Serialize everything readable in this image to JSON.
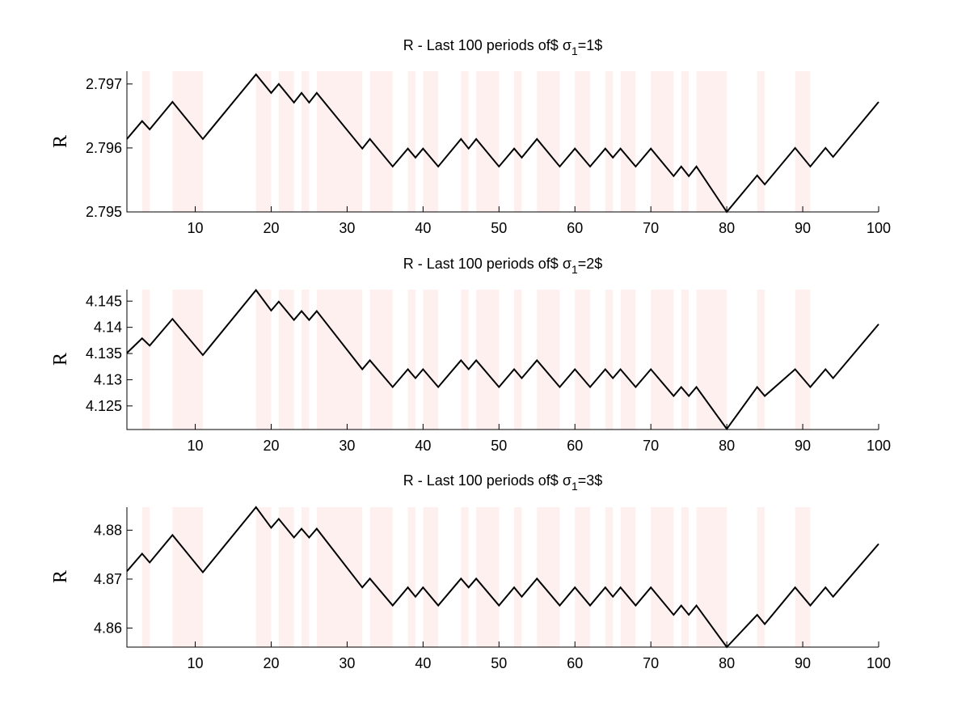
{
  "chart_data": [
    {
      "type": "line",
      "title": "R - Last 100 periods of$ σ1=1$",
      "title_main": "R - Last 100 periods of$ σ",
      "title_sub": "1",
      "title_end": "=1$",
      "ylabel": "R",
      "xlim": [
        1,
        100
      ],
      "ylim": [
        2.795,
        2.7972
      ],
      "xticks": [
        10,
        20,
        30,
        40,
        50,
        60,
        70,
        80,
        90,
        100
      ],
      "yticks": [
        2.795,
        2.796,
        2.797
      ],
      "ytick_labels": [
        "2.795",
        "2.796",
        "2.797"
      ],
      "shaded_intervals": [
        [
          3,
          4
        ],
        [
          7,
          11
        ],
        [
          18,
          20
        ],
        [
          21,
          23
        ],
        [
          24,
          25
        ],
        [
          26,
          32
        ],
        [
          33,
          36
        ],
        [
          38,
          39
        ],
        [
          40,
          42
        ],
        [
          45,
          46
        ],
        [
          47,
          50
        ],
        [
          52,
          53
        ],
        [
          55,
          58
        ],
        [
          60,
          62
        ],
        [
          64,
          65
        ],
        [
          66,
          68
        ],
        [
          70,
          73
        ],
        [
          74,
          75
        ],
        [
          76,
          80
        ],
        [
          84,
          85
        ],
        [
          89,
          91
        ]
      ],
      "series": [
        {
          "x": [
            1,
            3,
            4,
            7,
            11,
            18,
            20,
            21,
            23,
            24,
            25,
            26,
            32,
            33,
            36,
            38,
            39,
            40,
            42,
            45,
            46,
            47,
            50,
            52,
            53,
            55,
            58,
            60,
            62,
            64,
            65,
            66,
            68,
            70,
            73,
            74,
            75,
            76,
            80,
            84,
            85,
            89,
            91,
            93,
            94,
            100
          ],
          "values": [
            2.79614,
            2.79642,
            2.79629,
            2.79672,
            2.79614,
            2.79715,
            2.79686,
            2.797,
            2.79671,
            2.79686,
            2.79671,
            2.79686,
            2.79599,
            2.79614,
            2.79571,
            2.79599,
            2.79585,
            2.79599,
            2.79571,
            2.79614,
            2.79599,
            2.79614,
            2.79571,
            2.79599,
            2.79585,
            2.79614,
            2.79571,
            2.79599,
            2.79571,
            2.79599,
            2.79585,
            2.79599,
            2.79571,
            2.79599,
            2.79556,
            2.79571,
            2.79556,
            2.79571,
            2.795,
            2.79557,
            2.79543,
            2.796,
            2.79571,
            2.796,
            2.79586,
            2.79672
          ]
        }
      ]
    },
    {
      "type": "line",
      "title": "R - Last 100 periods of$ σ1=2$",
      "title_main": "R - Last 100 periods of$ σ",
      "title_sub": "1",
      "title_end": "=2$",
      "ylabel": "R",
      "xlim": [
        1,
        100
      ],
      "ylim": [
        4.1205,
        4.1472
      ],
      "xticks": [
        10,
        20,
        30,
        40,
        50,
        60,
        70,
        80,
        90,
        100
      ],
      "yticks": [
        4.125,
        4.13,
        4.135,
        4.14,
        4.145
      ],
      "ytick_labels": [
        "4.125",
        "4.13",
        "4.135",
        "4.14",
        "4.145"
      ],
      "shaded_intervals": [
        [
          3,
          4
        ],
        [
          7,
          11
        ],
        [
          18,
          20
        ],
        [
          21,
          23
        ],
        [
          24,
          25
        ],
        [
          26,
          32
        ],
        [
          33,
          36
        ],
        [
          38,
          39
        ],
        [
          40,
          42
        ],
        [
          45,
          46
        ],
        [
          47,
          50
        ],
        [
          52,
          53
        ],
        [
          55,
          58
        ],
        [
          60,
          62
        ],
        [
          64,
          65
        ],
        [
          66,
          68
        ],
        [
          70,
          73
        ],
        [
          74,
          75
        ],
        [
          76,
          80
        ],
        [
          84,
          85
        ],
        [
          89,
          91
        ]
      ],
      "series": [
        {
          "x": [
            1,
            3,
            4,
            7,
            11,
            18,
            20,
            21,
            23,
            24,
            25,
            26,
            32,
            33,
            36,
            38,
            39,
            40,
            42,
            45,
            46,
            47,
            50,
            52,
            53,
            55,
            58,
            60,
            62,
            64,
            65,
            66,
            68,
            70,
            73,
            74,
            75,
            76,
            80,
            84,
            85,
            89,
            91,
            93,
            94,
            100
          ],
          "values": [
            4.1351,
            4.1379,
            4.1365,
            4.1416,
            4.1347,
            4.1471,
            4.1432,
            4.1449,
            4.1414,
            4.1431,
            4.1414,
            4.1431,
            4.132,
            4.1337,
            4.1286,
            4.132,
            4.1303,
            4.132,
            4.1286,
            4.1337,
            4.132,
            4.1337,
            4.1286,
            4.132,
            4.1303,
            4.1337,
            4.1286,
            4.132,
            4.1286,
            4.132,
            4.1303,
            4.132,
            4.1286,
            4.132,
            4.1269,
            4.1286,
            4.1269,
            4.1286,
            4.1206,
            4.1286,
            4.1269,
            4.132,
            4.1286,
            4.132,
            4.1303,
            4.1406
          ]
        }
      ]
    },
    {
      "type": "line",
      "title": "R - Last 100 periods of$ σ1=3$",
      "title_main": "R - Last 100 periods of$ σ",
      "title_sub": "1",
      "title_end": "=3$",
      "ylabel": "R",
      "xlim": [
        1,
        100
      ],
      "ylim": [
        4.8561,
        4.8847
      ],
      "xticks": [
        10,
        20,
        30,
        40,
        50,
        60,
        70,
        80,
        90,
        100
      ],
      "yticks": [
        4.86,
        4.87,
        4.88
      ],
      "ytick_labels": [
        "4.86",
        "4.87",
        "4.88"
      ],
      "shaded_intervals": [
        [
          3,
          4
        ],
        [
          7,
          11
        ],
        [
          18,
          20
        ],
        [
          21,
          23
        ],
        [
          24,
          25
        ],
        [
          26,
          32
        ],
        [
          33,
          36
        ],
        [
          38,
          39
        ],
        [
          40,
          42
        ],
        [
          45,
          46
        ],
        [
          47,
          50
        ],
        [
          52,
          53
        ],
        [
          55,
          58
        ],
        [
          60,
          62
        ],
        [
          64,
          65
        ],
        [
          66,
          68
        ],
        [
          70,
          73
        ],
        [
          74,
          75
        ],
        [
          76,
          80
        ],
        [
          84,
          85
        ],
        [
          89,
          91
        ]
      ],
      "series": [
        {
          "x": [
            1,
            3,
            4,
            7,
            11,
            18,
            20,
            21,
            23,
            24,
            25,
            26,
            32,
            33,
            36,
            38,
            39,
            40,
            42,
            45,
            46,
            47,
            50,
            52,
            53,
            55,
            58,
            60,
            62,
            64,
            65,
            66,
            68,
            70,
            73,
            74,
            75,
            76,
            80,
            84,
            85,
            89,
            91,
            93,
            94,
            100
          ],
          "values": [
            4.8716,
            4.8752,
            4.8734,
            4.879,
            4.8714,
            4.8847,
            4.8805,
            4.8823,
            4.8785,
            4.8803,
            4.8785,
            4.8803,
            4.8683,
            4.8701,
            4.8646,
            4.8683,
            4.8664,
            4.8683,
            4.8646,
            4.8701,
            4.8683,
            4.8701,
            4.8646,
            4.8683,
            4.8664,
            4.8701,
            4.8646,
            4.8683,
            4.8646,
            4.8683,
            4.8664,
            4.8683,
            4.8646,
            4.8683,
            4.8627,
            4.8646,
            4.8627,
            4.8646,
            4.8561,
            4.8627,
            4.8608,
            4.8683,
            4.8646,
            4.8683,
            4.8664,
            4.8772
          ]
        }
      ]
    }
  ]
}
